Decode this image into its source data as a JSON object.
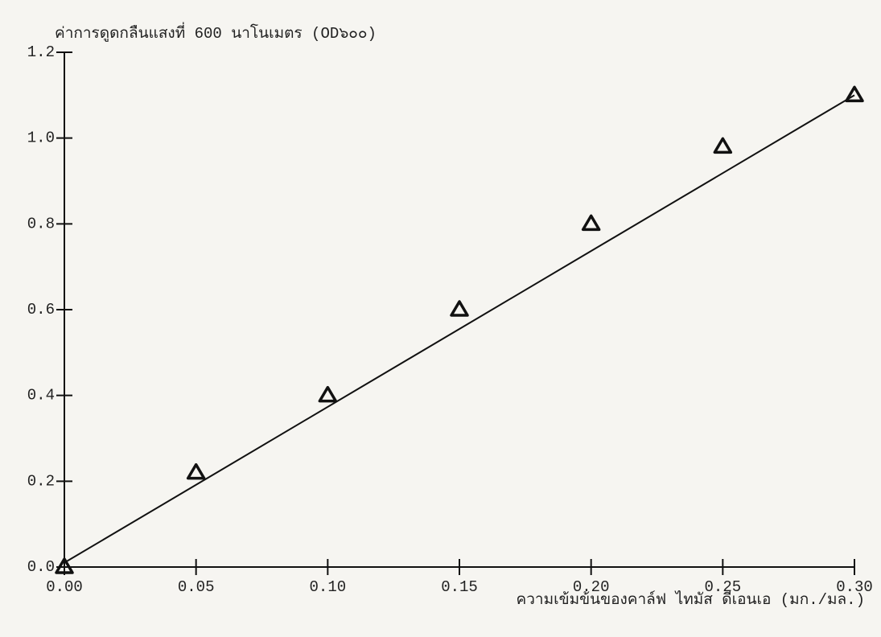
{
  "chart_data": {
    "type": "scatter",
    "y_label": "ค่าการดูดกลืนแสงที่ 600 นาโนเมตร (OD๖๐๐)",
    "x_label": "ความเข้มข้นของคาล์ฟ ไทมัส ดีเอนเอ    (มก./มล.)",
    "x": [
      0,
      0.05,
      0.1,
      0.15,
      0.2,
      0.25,
      0.3
    ],
    "series": [
      {
        "color": "#111111",
        "marker": "triangle",
        "values": [
          0.0,
          0.22,
          0.4,
          0.6,
          0.8,
          0.98,
          1.1
        ]
      }
    ],
    "fit_line": {
      "x": [
        0,
        0.3
      ],
      "values": [
        0.01,
        1.1
      ],
      "color": "#111111"
    },
    "xlim": [
      0,
      0.3
    ],
    "ylim": [
      0,
      1.2
    ],
    "xticks": [
      {
        "value": 0,
        "label": "0.00"
      },
      {
        "value": 0.05,
        "label": "0.05"
      },
      {
        "value": 0.1,
        "label": "0.10"
      },
      {
        "value": 0.15,
        "label": "0.15"
      },
      {
        "value": 0.2,
        "label": "0.20"
      },
      {
        "value": 0.25,
        "label": "0.25"
      },
      {
        "value": 0.3,
        "label": "0.30"
      }
    ],
    "yticks": [
      {
        "value": 0,
        "label": "0.0"
      },
      {
        "value": 0.2,
        "label": "0.2"
      },
      {
        "value": 0.4,
        "label": "0.4"
      },
      {
        "value": 0.6,
        "label": "0.6"
      },
      {
        "value": 0.8,
        "label": "0.8"
      },
      {
        "value": 1.0,
        "label": "1.0"
      },
      {
        "value": 1.2,
        "label": "1.2"
      }
    ],
    "grid": false
  }
}
